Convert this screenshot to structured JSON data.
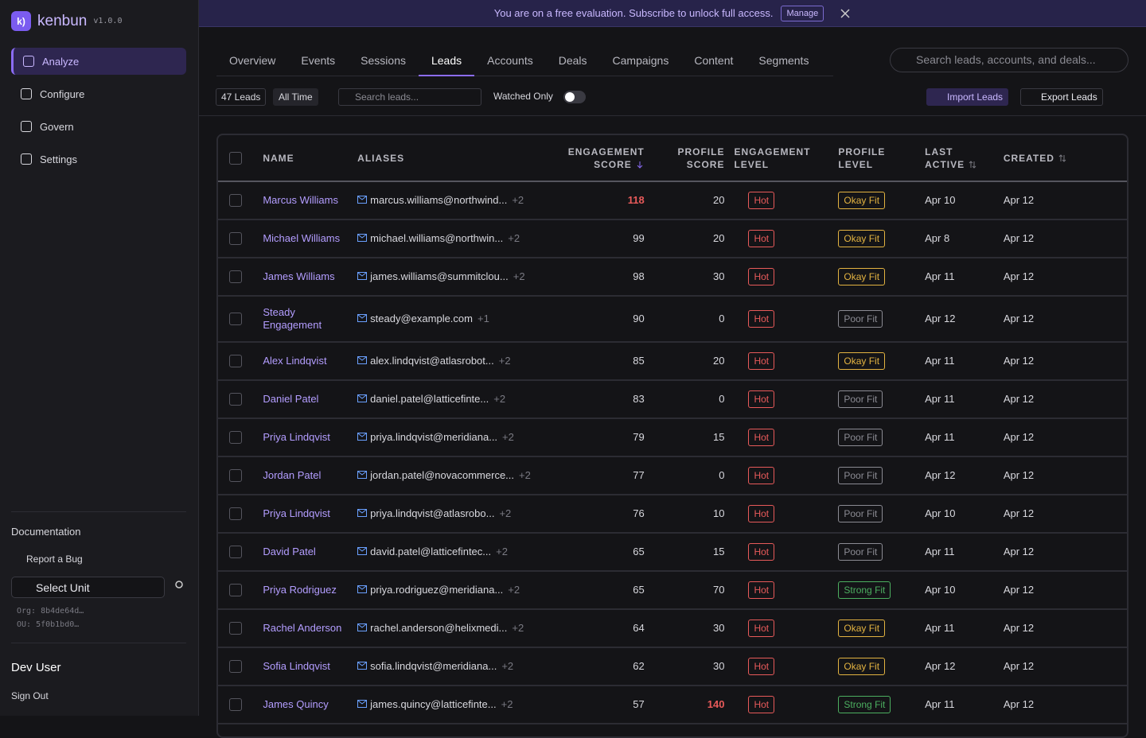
{
  "sidebar": {
    "brand": "kenbun",
    "version": "v1.0.0",
    "nav": [
      "Analyze",
      "Configure",
      "Govern",
      "Settings"
    ],
    "active_nav": 0,
    "documentation": "Documentation",
    "report_bug": "Report a Bug",
    "select_unit": "Select Unit",
    "org": "Org: 8b4de64d…",
    "ou": "OU: 5f0b1bd0…",
    "user": "Dev User",
    "sign_out": "Sign Out"
  },
  "banner": {
    "text": "You are on a free evaluation. Subscribe to unlock full access.",
    "button": "Manage"
  },
  "tabs": [
    "Overview",
    "Events",
    "Sessions",
    "Leads",
    "Accounts",
    "Deals",
    "Campaigns",
    "Content",
    "Segments"
  ],
  "active_tab": 3,
  "global_search": "Search leads, accounts, and deals...",
  "toolbar": {
    "count": "47 Leads",
    "range": "All Time",
    "search": "Search leads...",
    "watched": "Watched Only",
    "import": "Import Leads",
    "export": "Export Leads"
  },
  "table": {
    "columns": [
      "NAME",
      "ALIASES",
      "ENGAGEMENT SCORE",
      "PROFILE SCORE",
      "ENGAGEMENT LEVEL",
      "PROFILE LEVEL",
      "LAST ACTIVE",
      "CREATED"
    ],
    "sort_icons": [
      null,
      null,
      "desc",
      null,
      null,
      null,
      "both",
      "both"
    ],
    "highlight_over": 100,
    "fit_colors": {
      "Okay Fit": "#e3b341",
      "Poor Fit": "#8b8b93",
      "Strong Fit": "#4caf60"
    },
    "rows": [
      [
        "Marcus Williams",
        "marcus.williams@northwind...",
        "+2",
        118,
        20,
        "Hot",
        "Okay Fit",
        "Apr 10",
        "Apr 12"
      ],
      [
        "Michael Williams",
        "michael.williams@northwin...",
        "+2",
        99,
        20,
        "Hot",
        "Okay Fit",
        "Apr 8",
        "Apr 12"
      ],
      [
        "James Williams",
        "james.williams@summitclou...",
        "+2",
        98,
        30,
        "Hot",
        "Okay Fit",
        "Apr 11",
        "Apr 12"
      ],
      [
        "Steady Engagement",
        "steady@example.com",
        "+1",
        90,
        0,
        "Hot",
        "Poor Fit",
        "Apr 12",
        "Apr 12"
      ],
      [
        "Alex Lindqvist",
        "alex.lindqvist@atlasrobot...",
        "+2",
        85,
        20,
        "Hot",
        "Okay Fit",
        "Apr 11",
        "Apr 12"
      ],
      [
        "Daniel Patel",
        "daniel.patel@latticefinte...",
        "+2",
        83,
        0,
        "Hot",
        "Poor Fit",
        "Apr 11",
        "Apr 12"
      ],
      [
        "Priya Lindqvist",
        "priya.lindqvist@meridiana...",
        "+2",
        79,
        15,
        "Hot",
        "Poor Fit",
        "Apr 11",
        "Apr 12"
      ],
      [
        "Jordan Patel",
        "jordan.patel@novacommerce...",
        "+2",
        77,
        0,
        "Hot",
        "Poor Fit",
        "Apr 12",
        "Apr 12"
      ],
      [
        "Priya Lindqvist",
        "priya.lindqvist@atlasrobo...",
        "+2",
        76,
        10,
        "Hot",
        "Poor Fit",
        "Apr 10",
        "Apr 12"
      ],
      [
        "David Patel",
        "david.patel@latticefintec...",
        "+2",
        65,
        15,
        "Hot",
        "Poor Fit",
        "Apr 11",
        "Apr 12"
      ],
      [
        "Priya Rodriguez",
        "priya.rodriguez@meridiana...",
        "+2",
        65,
        70,
        "Hot",
        "Strong Fit",
        "Apr 10",
        "Apr 12"
      ],
      [
        "Rachel Anderson",
        "rachel.anderson@helixmedi...",
        "+2",
        64,
        30,
        "Hot",
        "Okay Fit",
        "Apr 11",
        "Apr 12"
      ],
      [
        "Sofia Lindqvist",
        "sofia.lindqvist@meridiana...",
        "+2",
        62,
        30,
        "Hot",
        "Okay Fit",
        "Apr 12",
        "Apr 12"
      ],
      [
        "James Quincy",
        "james.quincy@latticefinte...",
        "+2",
        57,
        140,
        "Hot",
        "Strong Fit",
        "Apr 11",
        "Apr 12"
      ]
    ]
  }
}
